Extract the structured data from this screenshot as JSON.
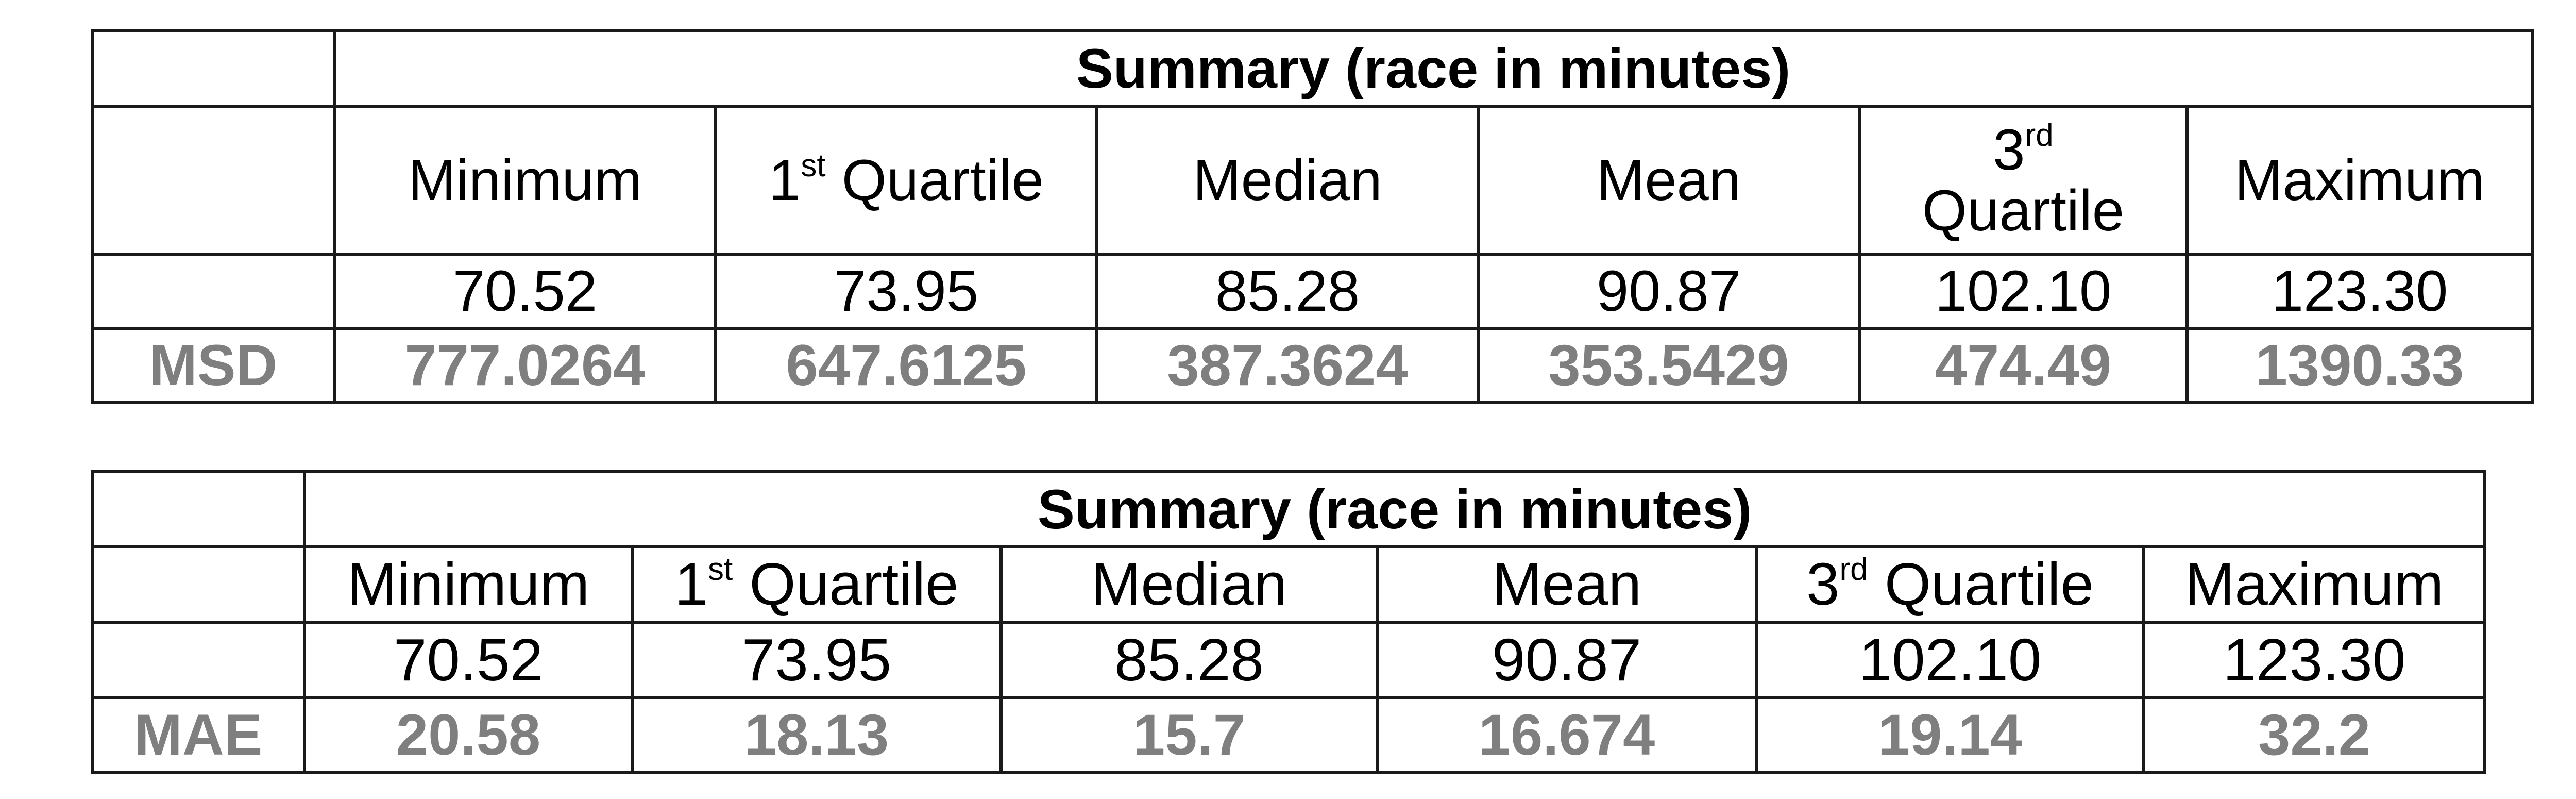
{
  "tables": [
    {
      "title": "Summary (race in minutes)",
      "headers": [
        {
          "pre": "Minimum",
          "sup": "",
          "post": ""
        },
        {
          "pre": "1",
          "sup": "st",
          "post": " Quartile"
        },
        {
          "pre": "Median",
          "sup": "",
          "post": ""
        },
        {
          "pre": "Mean",
          "sup": "",
          "post": ""
        },
        {
          "pre": "3",
          "sup": "rd",
          "post": "Quartile"
        },
        {
          "pre": "Maximum",
          "sup": "",
          "post": ""
        }
      ],
      "values": [
        "70.52",
        "73.95",
        "85.28",
        "90.87",
        "102.10",
        "123.30"
      ],
      "metric_label": "MSD",
      "metric_values": [
        "777.0264",
        "647.6125",
        "387.3624",
        "353.5429",
        "474.49",
        "1390.33"
      ]
    },
    {
      "title": "Summary (race in minutes)",
      "headers": [
        {
          "pre": "Minimum",
          "sup": "",
          "post": ""
        },
        {
          "pre": "1",
          "sup": "st",
          "post": " Quartile"
        },
        {
          "pre": "Median",
          "sup": "",
          "post": ""
        },
        {
          "pre": "Mean",
          "sup": "",
          "post": ""
        },
        {
          "pre": "3",
          "sup": "rd",
          "post": " Quartile"
        },
        {
          "pre": "Maximum",
          "sup": "",
          "post": ""
        }
      ],
      "values": [
        "70.52",
        "73.95",
        "85.28",
        "90.87",
        "102.10",
        "123.30"
      ],
      "metric_label": "MAE",
      "metric_values": [
        "20.58",
        "18.13",
        "15.7",
        "16.674",
        "19.14",
        "32.2"
      ]
    }
  ]
}
